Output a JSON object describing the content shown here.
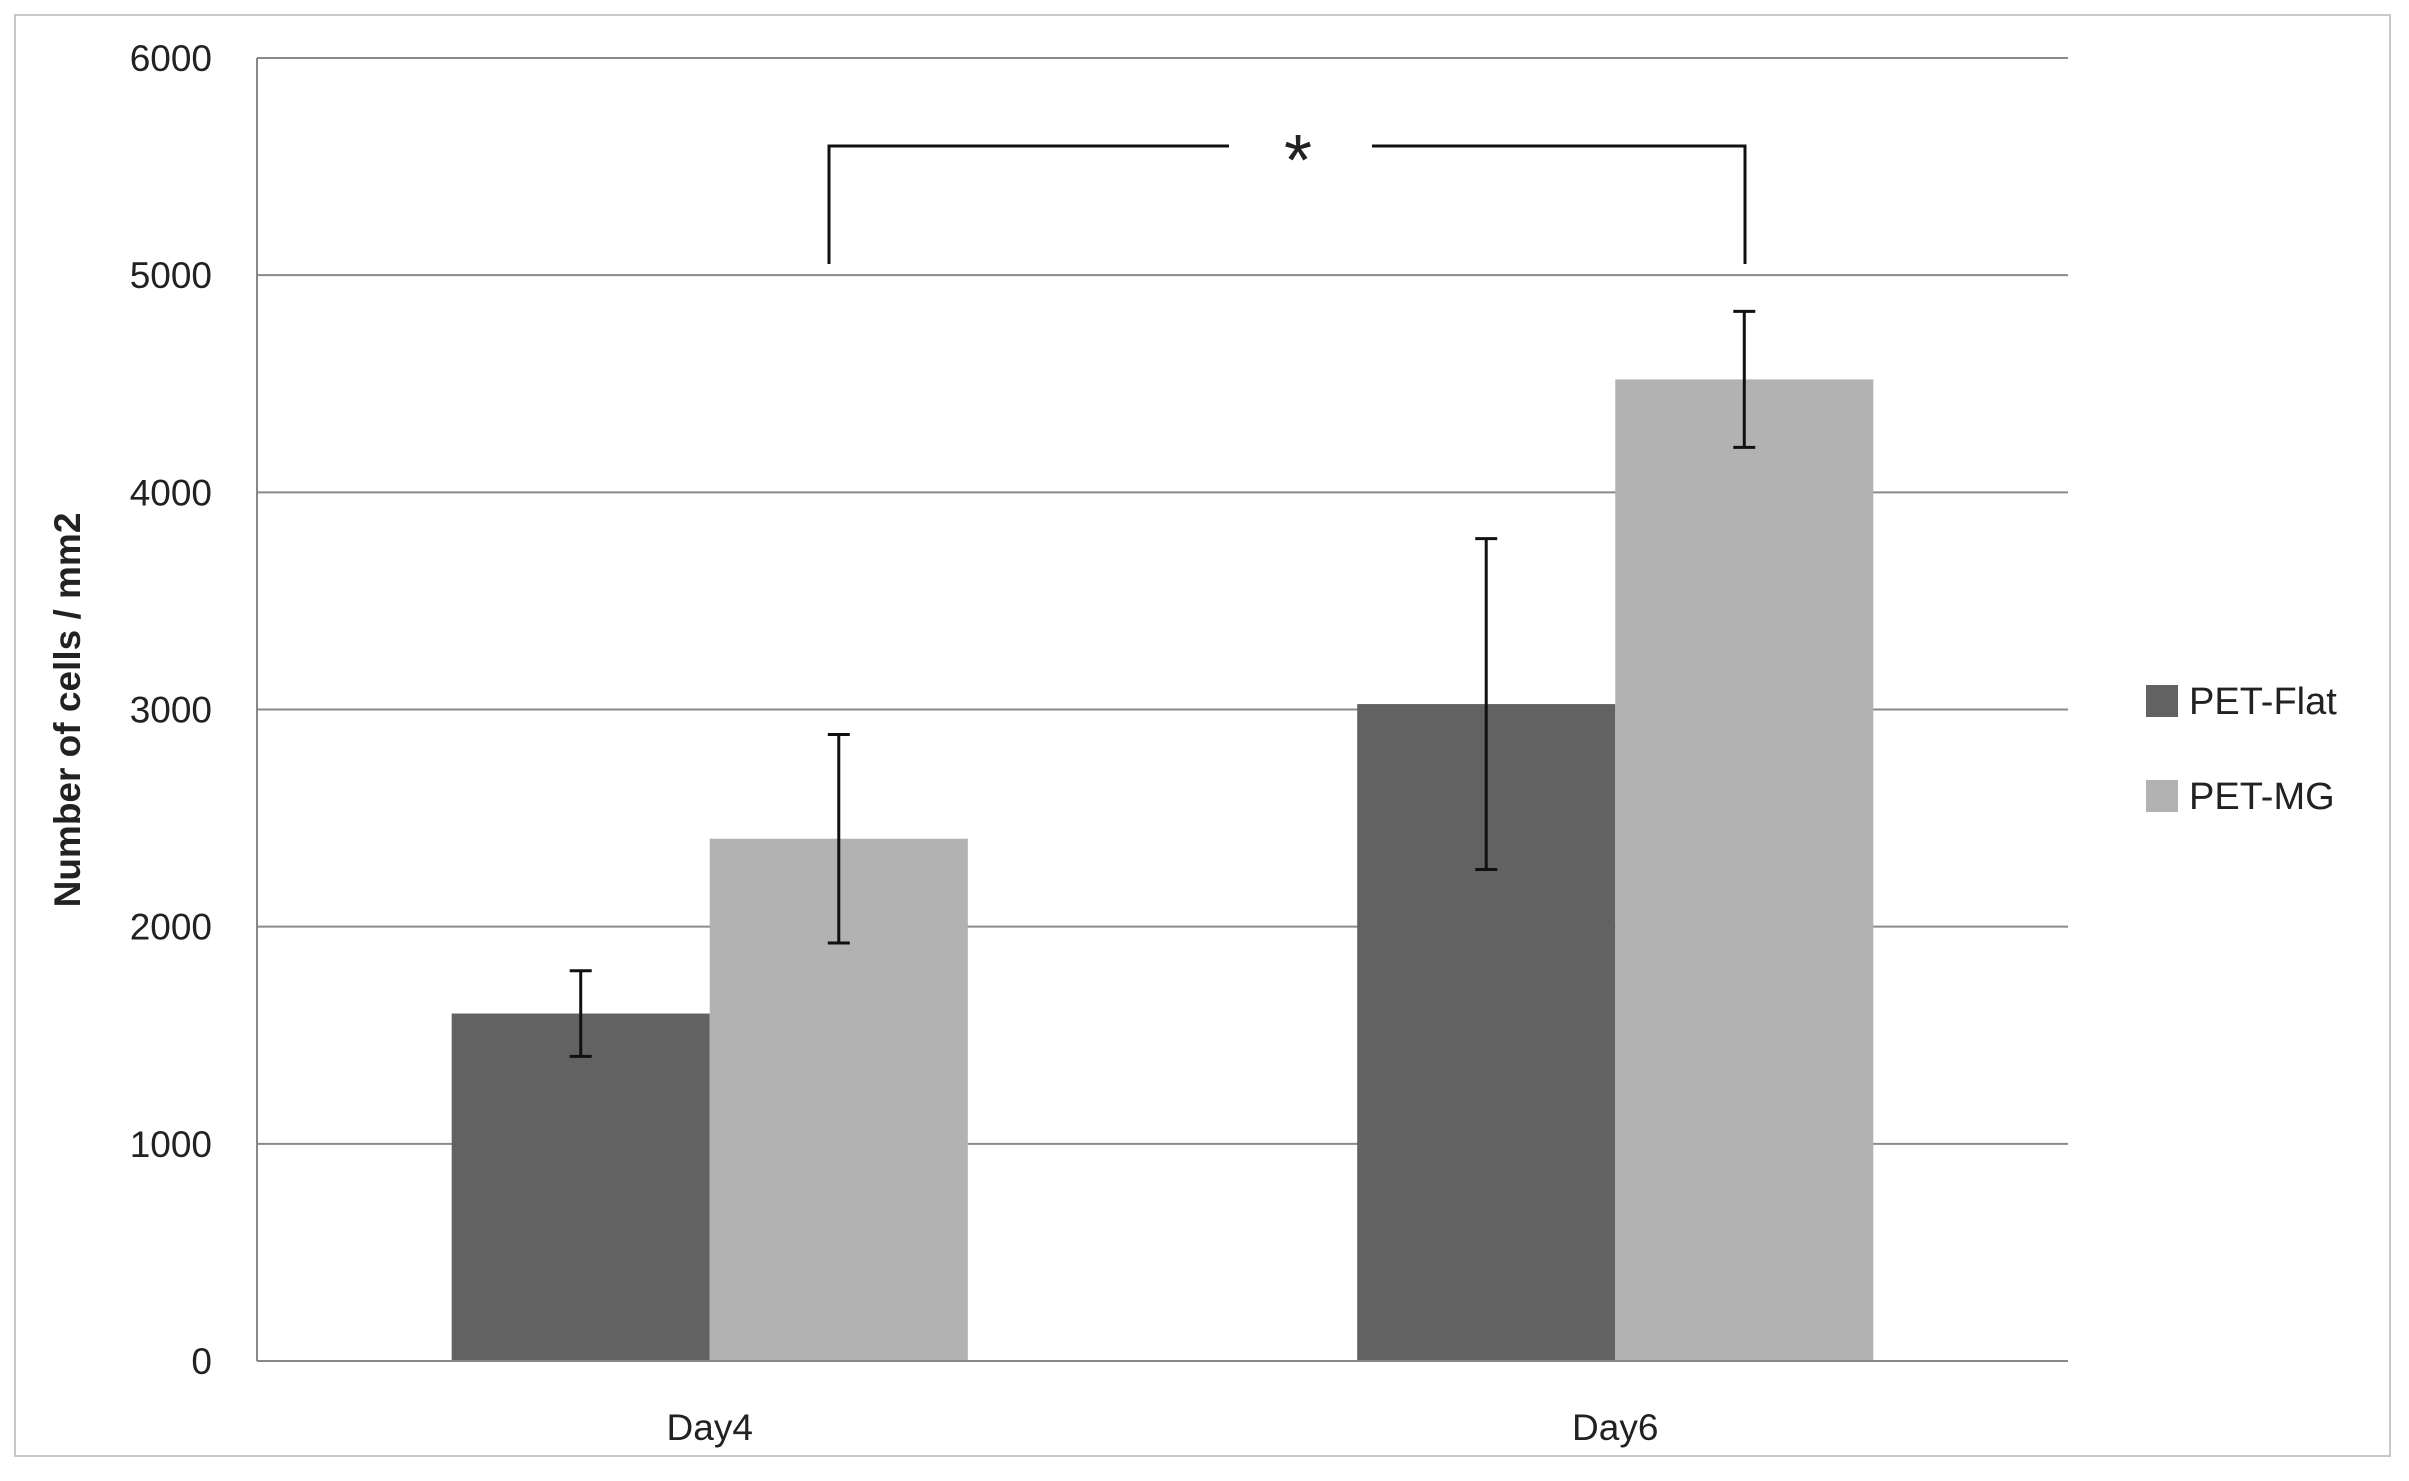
{
  "chart_data": {
    "type": "bar",
    "title": "",
    "xlabel": "",
    "ylabel": "Number of cells / mm2",
    "ylim": [
      0,
      6000
    ],
    "yticks": [
      0,
      1000,
      2000,
      3000,
      4000,
      5000,
      6000
    ],
    "grid": true,
    "legend_position": "right",
    "categories": [
      "Day4",
      "Day6"
    ],
    "series": [
      {
        "name": "PET-Flat",
        "color": "#626262",
        "values": [
          1600,
          3025
        ],
        "errors": [
          197,
          762
        ]
      },
      {
        "name": "PET-MG",
        "color": "#b2b2b2",
        "values": [
          2405,
          4520
        ],
        "errors": [
          480,
          313
        ]
      }
    ],
    "annotations": [
      {
        "text": "*",
        "type": "significance-bracket",
        "from": "Day4",
        "to": "Day6"
      }
    ]
  }
}
